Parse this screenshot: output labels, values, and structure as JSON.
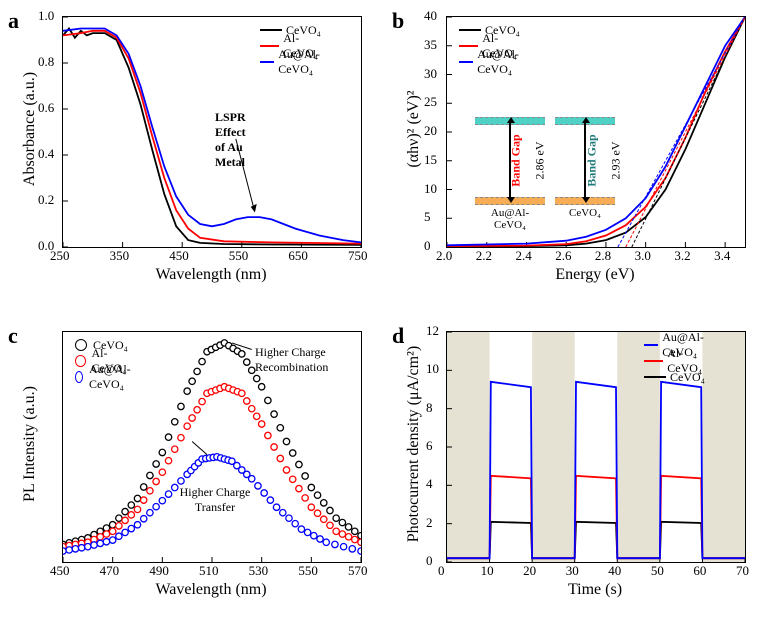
{
  "series_labels": {
    "c": "CeVO₄",
    "a": "Al-CeVO₄",
    "au": "Au@Al-CeVO₄"
  },
  "colors": {
    "c": "#000000",
    "a": "#ff0000",
    "au": "#0000ff",
    "shade": "#e6e2d3",
    "inset_top": "#4fd1c5",
    "inset_bot": "#f6ad55"
  },
  "a": {
    "xlabel": "Wavelength (nm)",
    "ylabel": "Absorbance (a.u.)",
    "xlim": [
      250,
      750
    ],
    "ylim": [
      0,
      1.0
    ],
    "xticks": [
      250,
      350,
      450,
      550,
      650,
      750
    ],
    "yticks": [
      "0.0",
      "0.2",
      "0.4",
      "0.6",
      "0.8",
      "1.0"
    ],
    "annot": "LSPR Effect of Au Metal",
    "data_c": [
      [
        250,
        0.92
      ],
      [
        260,
        0.95
      ],
      [
        270,
        0.91
      ],
      [
        280,
        0.94
      ],
      [
        290,
        0.92
      ],
      [
        300,
        0.93
      ],
      [
        320,
        0.93
      ],
      [
        340,
        0.9
      ],
      [
        360,
        0.78
      ],
      [
        380,
        0.62
      ],
      [
        400,
        0.42
      ],
      [
        420,
        0.23
      ],
      [
        440,
        0.09
      ],
      [
        460,
        0.03
      ],
      [
        480,
        0.018
      ],
      [
        520,
        0.013
      ],
      [
        600,
        0.011
      ],
      [
        750,
        0.009
      ]
    ],
    "data_a": [
      [
        250,
        0.92
      ],
      [
        280,
        0.93
      ],
      [
        300,
        0.94
      ],
      [
        320,
        0.94
      ],
      [
        340,
        0.91
      ],
      [
        360,
        0.82
      ],
      [
        380,
        0.67
      ],
      [
        400,
        0.48
      ],
      [
        420,
        0.3
      ],
      [
        440,
        0.16
      ],
      [
        460,
        0.08
      ],
      [
        480,
        0.04
      ],
      [
        520,
        0.025
      ],
      [
        600,
        0.02
      ],
      [
        750,
        0.015
      ]
    ],
    "data_au": [
      [
        250,
        0.94
      ],
      [
        280,
        0.95
      ],
      [
        300,
        0.95
      ],
      [
        320,
        0.95
      ],
      [
        340,
        0.92
      ],
      [
        360,
        0.84
      ],
      [
        380,
        0.7
      ],
      [
        400,
        0.52
      ],
      [
        420,
        0.35
      ],
      [
        440,
        0.22
      ],
      [
        460,
        0.14
      ],
      [
        480,
        0.1
      ],
      [
        500,
        0.09
      ],
      [
        520,
        0.1
      ],
      [
        540,
        0.12
      ],
      [
        560,
        0.13
      ],
      [
        580,
        0.13
      ],
      [
        600,
        0.12
      ],
      [
        640,
        0.08
      ],
      [
        680,
        0.05
      ],
      [
        720,
        0.03
      ],
      [
        750,
        0.02
      ]
    ]
  },
  "b": {
    "xlabel": "Energy (eV)",
    "ylabel": "(αhν)² (eV)²",
    "xlim": [
      2.0,
      3.5
    ],
    "ylim": [
      0,
      40
    ],
    "xticks": [
      "2.0",
      "2.2",
      "2.4",
      "2.6",
      "2.8",
      "3.0",
      "3.2",
      "3.4"
    ],
    "yticks": [
      0,
      5,
      10,
      15,
      20,
      25,
      30,
      35,
      40
    ],
    "bg_label": "Band Gap",
    "bg_au": "2.86 eV",
    "bg_c": "2.93 eV",
    "inset_au": "Au@Al-CeVO₄",
    "inset_c": "CeVO₄",
    "data_c": [
      [
        2.0,
        0.1
      ],
      [
        2.4,
        0.15
      ],
      [
        2.6,
        0.3
      ],
      [
        2.7,
        0.6
      ],
      [
        2.8,
        1.2
      ],
      [
        2.9,
        2.5
      ],
      [
        3.0,
        5.2
      ],
      [
        3.1,
        10
      ],
      [
        3.2,
        17
      ],
      [
        3.3,
        25
      ],
      [
        3.4,
        33
      ],
      [
        3.5,
        40
      ]
    ],
    "data_a": [
      [
        2.0,
        0.15
      ],
      [
        2.4,
        0.25
      ],
      [
        2.6,
        0.5
      ],
      [
        2.7,
        1.0
      ],
      [
        2.8,
        2.0
      ],
      [
        2.9,
        3.8
      ],
      [
        3.0,
        7.0
      ],
      [
        3.1,
        12
      ],
      [
        3.2,
        19
      ],
      [
        3.3,
        27
      ],
      [
        3.4,
        34
      ],
      [
        3.5,
        40
      ]
    ],
    "data_au": [
      [
        2.0,
        0.3
      ],
      [
        2.4,
        0.6
      ],
      [
        2.6,
        1.1
      ],
      [
        2.7,
        1.8
      ],
      [
        2.8,
        3.0
      ],
      [
        2.9,
        5.0
      ],
      [
        3.0,
        8.5
      ],
      [
        3.1,
        14
      ],
      [
        3.2,
        21
      ],
      [
        3.3,
        28
      ],
      [
        3.4,
        35
      ],
      [
        3.5,
        40
      ]
    ],
    "tang_c": [
      [
        2.93,
        0
      ],
      [
        3.5,
        40
      ]
    ],
    "tang_au": [
      [
        2.86,
        0
      ],
      [
        3.5,
        40
      ]
    ]
  },
  "c": {
    "xlabel": "Wavelength (nm)",
    "ylabel": "PL Intensity (a.u.)",
    "xlim": [
      450,
      570
    ],
    "ylim": [
      0,
      1.05
    ],
    "xticks": [
      450,
      470,
      490,
      510,
      530,
      550,
      570
    ],
    "annot1": "Higher Charge Recombination",
    "annot2": "Higher Charge Transfer",
    "data_c": [
      [
        450,
        0.08
      ],
      [
        460,
        0.11
      ],
      [
        470,
        0.17
      ],
      [
        480,
        0.29
      ],
      [
        490,
        0.5
      ],
      [
        500,
        0.78
      ],
      [
        508,
        0.96
      ],
      [
        515,
        1.0
      ],
      [
        522,
        0.95
      ],
      [
        530,
        0.8
      ],
      [
        540,
        0.55
      ],
      [
        550,
        0.34
      ],
      [
        560,
        0.2
      ],
      [
        570,
        0.12
      ]
    ],
    "data_a": [
      [
        450,
        0.07
      ],
      [
        460,
        0.09
      ],
      [
        470,
        0.14
      ],
      [
        480,
        0.24
      ],
      [
        490,
        0.41
      ],
      [
        500,
        0.62
      ],
      [
        508,
        0.77
      ],
      [
        515,
        0.8
      ],
      [
        522,
        0.77
      ],
      [
        530,
        0.63
      ],
      [
        540,
        0.42
      ],
      [
        550,
        0.25
      ],
      [
        560,
        0.14
      ],
      [
        570,
        0.09
      ]
    ],
    "data_au": [
      [
        450,
        0.05
      ],
      [
        460,
        0.07
      ],
      [
        470,
        0.1
      ],
      [
        480,
        0.17
      ],
      [
        490,
        0.28
      ],
      [
        500,
        0.4
      ],
      [
        506,
        0.47
      ],
      [
        512,
        0.48
      ],
      [
        518,
        0.46
      ],
      [
        526,
        0.38
      ],
      [
        536,
        0.25
      ],
      [
        546,
        0.15
      ],
      [
        556,
        0.09
      ],
      [
        570,
        0.05
      ]
    ]
  },
  "d": {
    "xlabel": "Time (s)",
    "ylabel": "Photocurrent density (μA/cm²)",
    "xlim": [
      0,
      70
    ],
    "ylim": [
      0,
      12
    ],
    "xticks": [
      0,
      10,
      20,
      30,
      40,
      50,
      60,
      70
    ],
    "yticks": [
      0,
      2,
      4,
      6,
      8,
      10,
      12
    ],
    "light_off": [
      [
        0,
        10
      ],
      [
        20,
        30
      ],
      [
        40,
        50
      ],
      [
        60,
        70
      ]
    ],
    "base": 0.2,
    "on_c": 2.1,
    "on_a": 4.5,
    "on_au": 9.4
  }
}
